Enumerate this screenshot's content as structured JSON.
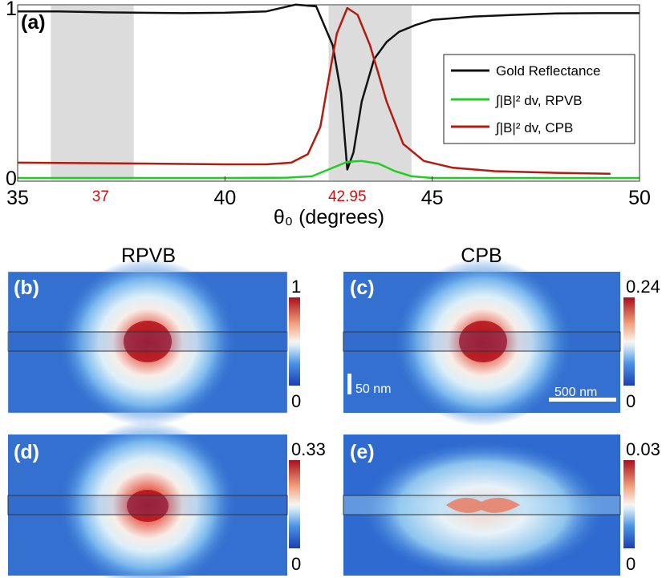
{
  "panel_labels": {
    "a": "(a)",
    "b": "(b)",
    "c": "(c)",
    "d": "(d)",
    "e": "(e)"
  },
  "column_titles": {
    "left": "RPVB",
    "right": "CPB"
  },
  "scale_bars": {
    "vertical": "50 nm",
    "horizontal": "500 nm"
  },
  "colorbars": {
    "b": {
      "max": "1",
      "min": "0"
    },
    "c": {
      "max": "0.24",
      "min": "0"
    },
    "d": {
      "max": "0.33",
      "min": "0"
    },
    "e": {
      "max": "0.03",
      "min": "0"
    }
  },
  "colors": {
    "reflectance": "#111111",
    "rpvb": "#22cc22",
    "cpb": "#b01c10",
    "highlight_band": "#dcdcdc",
    "special_tick": "#cc1111"
  },
  "chart_data": {
    "type": "line",
    "title": "",
    "xlabel": "θ₀ (degrees)",
    "ylabel": "",
    "xlim": [
      35,
      50
    ],
    "ylim": [
      0,
      1
    ],
    "x_ticks": [
      "35",
      "40",
      "45",
      "50"
    ],
    "y_ticks": [
      "0",
      "1"
    ],
    "special_ticks": [
      "37",
      "42.95"
    ],
    "shaded_bands": [
      [
        35.8,
        37.8
      ],
      [
        42.5,
        44.5
      ]
    ],
    "legend": {
      "placement": "right",
      "entries": [
        "Gold Reflectance",
        "∫|B|² dv, RPVB",
        "∫|B|² dv, CPB"
      ]
    },
    "series": [
      {
        "name": "Gold Reflectance",
        "x": [
          35.0,
          36.0,
          37.0,
          38.0,
          39.0,
          40.0,
          41.0,
          41.7,
          42.2,
          42.6,
          42.8,
          42.95,
          43.1,
          43.3,
          43.6,
          43.9,
          44.2,
          44.6,
          45.0,
          45.5,
          46.0,
          47.0,
          48.0,
          49.0,
          50.0
        ],
        "values": [
          0.98,
          0.98,
          0.975,
          0.972,
          0.97,
          0.972,
          0.98,
          1.02,
          1.01,
          0.78,
          0.5,
          0.05,
          0.15,
          0.45,
          0.7,
          0.8,
          0.86,
          0.9,
          0.93,
          0.94,
          0.95,
          0.96,
          0.968,
          0.97,
          0.97
        ]
      },
      {
        "name": "∫|B|² dv, RPVB",
        "x": [
          35.0,
          40.0,
          41.5,
          42.1,
          42.5,
          42.95,
          43.3,
          43.7,
          44.1,
          44.5,
          45.0,
          46.0,
          50.0
        ],
        "values": [
          0.0,
          0.0,
          0.002,
          0.01,
          0.05,
          0.095,
          0.1,
          0.085,
          0.04,
          0.01,
          0.0,
          0.0,
          0.0
        ]
      },
      {
        "name": "∫|B|² dv, CPB",
        "x": [
          35.0,
          38.0,
          40.0,
          41.0,
          41.6,
          42.0,
          42.3,
          42.5,
          42.7,
          42.95,
          43.2,
          43.5,
          43.9,
          44.3,
          44.8,
          45.5,
          46.5,
          48.0,
          49.3
        ],
        "values": [
          0.09,
          0.085,
          0.08,
          0.08,
          0.09,
          0.14,
          0.3,
          0.58,
          0.85,
          1.0,
          0.96,
          0.78,
          0.45,
          0.2,
          0.1,
          0.06,
          0.04,
          0.03,
          0.025
        ]
      }
    ]
  }
}
